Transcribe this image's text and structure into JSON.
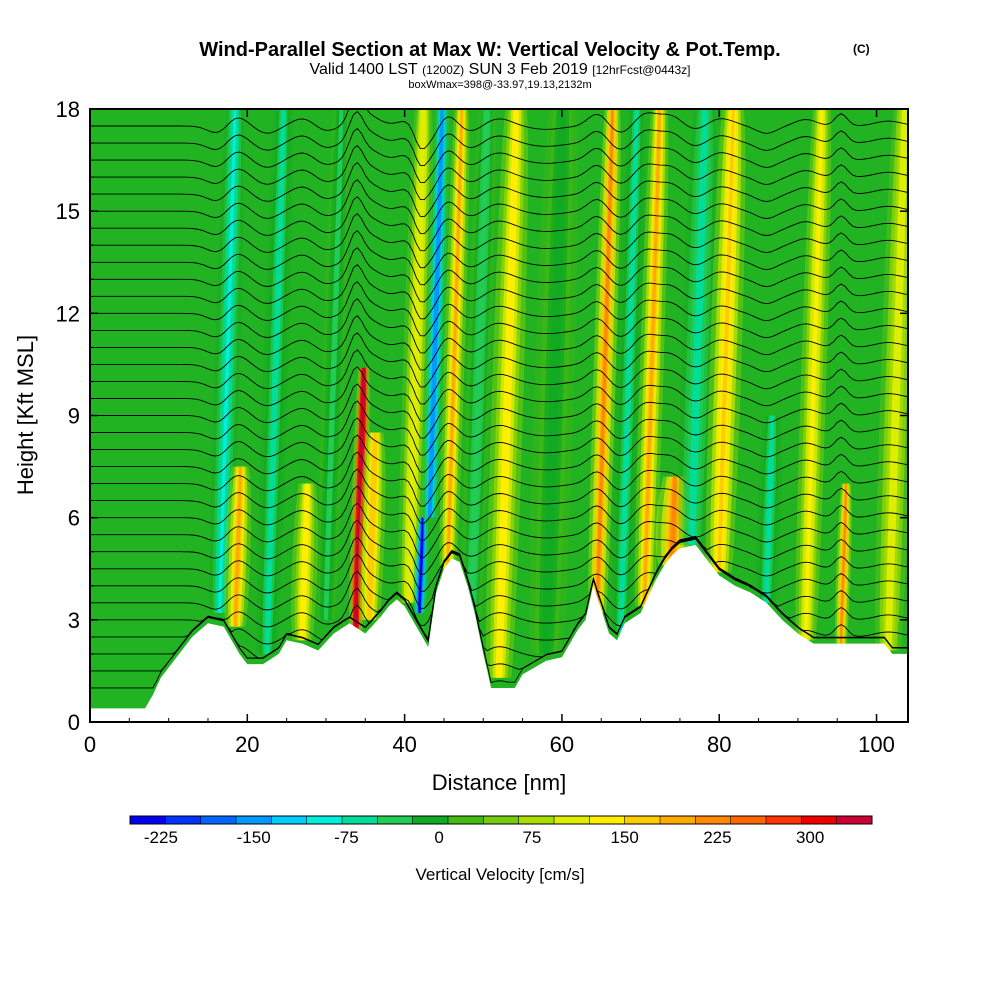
{
  "chart_data": {
    "type": "heatmap",
    "title": "Wind-Parallel Section at Max W: Vertical Velocity & Pot.Temp.",
    "title_mark": "(C)",
    "subtitle": {
      "valid": "Valid 1400 LST",
      "zulu": "(1200Z)",
      "date": "SUN 3 Feb 2019",
      "forecast": "[12hrFcst@0443z]"
    },
    "box_note": "boxWmax=398@-33.97,19.13,2132m",
    "xlabel": "Distance [nm]",
    "ylabel": "Height [Kft MSL]",
    "xlim": [
      0,
      104
    ],
    "ylim": [
      0,
      18
    ],
    "xticks": [
      "0",
      "20",
      "40",
      "60",
      "80",
      "100"
    ],
    "yticks": [
      "0",
      "3",
      "6",
      "9",
      "12",
      "15",
      "18"
    ],
    "colorbar": {
      "label": "Vertical Velocity [cm/s]",
      "tick_labels": [
        "-225",
        "-150",
        "-75",
        "0",
        "75",
        "150",
        "225",
        "300"
      ],
      "tick_values": [
        -225,
        -150,
        -75,
        0,
        75,
        150,
        225,
        300
      ],
      "min": -250,
      "max": 350,
      "step": 25,
      "colors": [
        "#0000ee",
        "#0033ff",
        "#0066ff",
        "#0099ff",
        "#00ccff",
        "#00eedd",
        "#00dd99",
        "#22cc55",
        "#11aa22",
        "#44bb11",
        "#77cc11",
        "#aadd00",
        "#ddee00",
        "#ffee00",
        "#ffcc00",
        "#ffaa00",
        "#ff8800",
        "#ff6600",
        "#ff3300",
        "#ee0000",
        "#cc0033"
      ]
    },
    "terrain_kft": [
      [
        0,
        0.4
      ],
      [
        7,
        0.4
      ],
      [
        8,
        0.8
      ],
      [
        9,
        1.3
      ],
      [
        10,
        1.6
      ],
      [
        11,
        1.9
      ],
      [
        12,
        2.2
      ],
      [
        13,
        2.5
      ],
      [
        14,
        2.7
      ],
      [
        15,
        2.9
      ],
      [
        17,
        2.8
      ],
      [
        18,
        2.4
      ],
      [
        19,
        2.0
      ],
      [
        20,
        1.7
      ],
      [
        22,
        1.7
      ],
      [
        24,
        2.0
      ],
      [
        25,
        2.4
      ],
      [
        27,
        2.3
      ],
      [
        29,
        2.1
      ],
      [
        31,
        2.6
      ],
      [
        33,
        2.9
      ],
      [
        35,
        2.6
      ],
      [
        37,
        3.1
      ],
      [
        38,
        3.4
      ],
      [
        39,
        3.6
      ],
      [
        40,
        3.4
      ],
      [
        41,
        3.0
      ],
      [
        42,
        2.6
      ],
      [
        43,
        2.2
      ],
      [
        44,
        3.8
      ],
      [
        45,
        4.5
      ],
      [
        46,
        4.8
      ],
      [
        47,
        4.7
      ],
      [
        48,
        4.0
      ],
      [
        49,
        3.1
      ],
      [
        50,
        2.0
      ],
      [
        51,
        1.0
      ],
      [
        54,
        1.0
      ],
      [
        55,
        1.4
      ],
      [
        58,
        1.8
      ],
      [
        60,
        1.9
      ],
      [
        61,
        2.3
      ],
      [
        62,
        2.7
      ],
      [
        63,
        3.0
      ],
      [
        64,
        4.0
      ],
      [
        65,
        3.3
      ],
      [
        66,
        2.6
      ],
      [
        67,
        2.4
      ],
      [
        68,
        2.9
      ],
      [
        70,
        3.2
      ],
      [
        71,
        3.7
      ],
      [
        72,
        4.2
      ],
      [
        73,
        4.6
      ],
      [
        74,
        4.9
      ],
      [
        75,
        5.1
      ],
      [
        77,
        5.2
      ],
      [
        78,
        4.9
      ],
      [
        79,
        4.6
      ],
      [
        80,
        4.3
      ],
      [
        82,
        4.0
      ],
      [
        84,
        3.8
      ],
      [
        86,
        3.5
      ],
      [
        88,
        3.0
      ],
      [
        90,
        2.6
      ],
      [
        92,
        2.3
      ],
      [
        94,
        2.3
      ],
      [
        101,
        2.3
      ],
      [
        102,
        2.0
      ],
      [
        104,
        2.0
      ]
    ],
    "velocity_bands": [
      {
        "x": 16.5,
        "width": 1.6,
        "peak": -110,
        "zmin": 3.2,
        "zmax": 18
      },
      {
        "x": 18.5,
        "width": 1.6,
        "peak": 130,
        "zmin": 2.8,
        "zmax": 7.5
      },
      {
        "x": 22.5,
        "width": 1.6,
        "peak": -90,
        "zmin": 2.0,
        "zmax": 18
      },
      {
        "x": 27.0,
        "width": 1.6,
        "peak": 90,
        "zmin": 2.4,
        "zmax": 7.0
      },
      {
        "x": 30.0,
        "width": 1.4,
        "peak": -60,
        "zmin": 3.0,
        "zmax": 18
      },
      {
        "x": 33.8,
        "width": 1.0,
        "peak": 330,
        "zmin": 2.7,
        "zmax": 10.4
      },
      {
        "x": 35.5,
        "width": 1.6,
        "peak": 120,
        "zmin": 3.0,
        "zmax": 8.5
      },
      {
        "x": 40.5,
        "width": 1.6,
        "peak": 70,
        "zmin": 3.5,
        "zmax": 18
      },
      {
        "x": 41.9,
        "width": 0.9,
        "peak": -230,
        "zmin": 3.2,
        "zmax": 6.0
      },
      {
        "x": 43.2,
        "width": 1.2,
        "peak": -170,
        "zmin": 6.0,
        "zmax": 18
      },
      {
        "x": 45.5,
        "width": 1.3,
        "peak": 130,
        "zmin": 4.5,
        "zmax": 18
      },
      {
        "x": 48.5,
        "width": 1.5,
        "peak": -70,
        "zmin": 3.0,
        "zmax": 18
      },
      {
        "x": 52.0,
        "width": 2.0,
        "peak": 90,
        "zmin": 1.3,
        "zmax": 18
      },
      {
        "x": 58.0,
        "width": 2.5,
        "peak": -40,
        "zmin": 2.0,
        "zmax": 18
      },
      {
        "x": 64.5,
        "width": 1.4,
        "peak": 150,
        "zmin": 3.2,
        "zmax": 18
      },
      {
        "x": 67.5,
        "width": 1.5,
        "peak": -90,
        "zmin": 2.6,
        "zmax": 18
      },
      {
        "x": 70.5,
        "width": 1.5,
        "peak": 130,
        "zmin": 3.4,
        "zmax": 18
      },
      {
        "x": 74.0,
        "width": 2.2,
        "peak": 160,
        "zmin": 4.6,
        "zmax": 7.2
      },
      {
        "x": 76.5,
        "width": 2.0,
        "peak": -100,
        "zmin": 5.2,
        "zmax": 18
      },
      {
        "x": 80.0,
        "width": 2.0,
        "peak": 100,
        "zmin": 4.4,
        "zmax": 18
      },
      {
        "x": 86.0,
        "width": 1.5,
        "peak": -90,
        "zmin": 3.5,
        "zmax": 9.0
      },
      {
        "x": 91.0,
        "width": 1.6,
        "peak": 80,
        "zmin": 2.4,
        "zmax": 18
      },
      {
        "x": 95.5,
        "width": 0.9,
        "peak": 150,
        "zmin": 2.3,
        "zmax": 7.0
      },
      {
        "x": 101.5,
        "width": 2.0,
        "peak": 60,
        "zmin": 2.1,
        "zmax": 18
      }
    ],
    "theta_contours_kft": [
      1.0,
      1.5,
      2.0,
      2.5,
      3.0,
      3.5,
      4.0,
      4.5,
      5.0,
      5.5,
      6.0,
      6.5,
      7.0,
      7.5,
      8.0,
      8.5,
      9.0,
      9.5,
      10.0,
      10.5,
      11.0,
      11.5,
      12.0,
      12.5,
      13.0,
      13.5,
      14.0,
      14.5,
      15.0,
      15.5,
      16.0,
      16.5,
      17.0,
      17.5
    ]
  }
}
